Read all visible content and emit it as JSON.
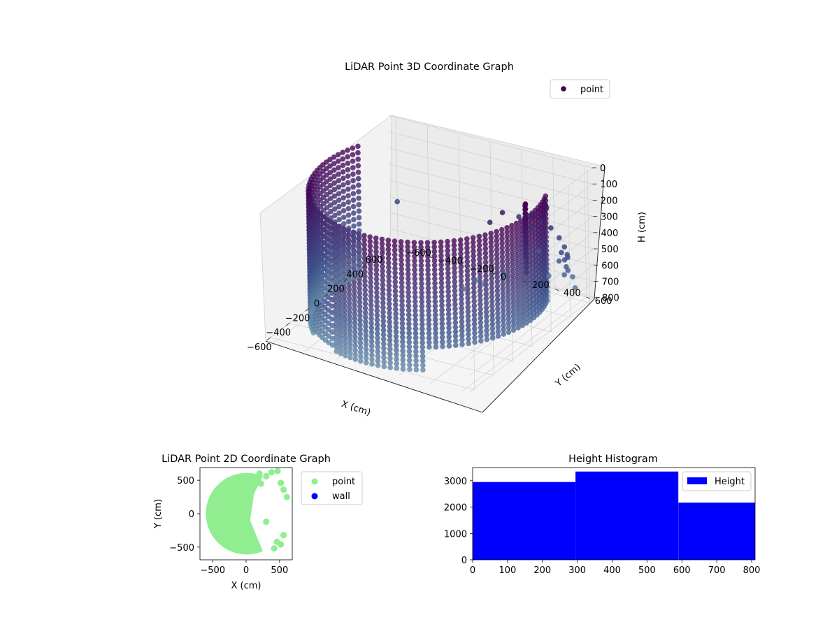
{
  "colors": {
    "point_3d_dark": "#440154",
    "point_3d_mid": "#3b528b",
    "point_2d": "#90ee90",
    "wall": "#0000ff",
    "hist_bar": "#0000ff",
    "pane": "#f2f2f2",
    "grid": "#cfcfcf"
  },
  "chart_data": [
    {
      "type": "scatter",
      "projection": "3d",
      "title": "LiDAR Point 3D Coordinate Graph",
      "xlabel": "X (cm)",
      "ylabel": "Y (cm)",
      "zlabel": "H (cm)",
      "x_ticks": [
        "−600",
        "−400",
        "−200",
        "0",
        "200",
        "400",
        "600"
      ],
      "y_ticks": [
        "−600",
        "−400",
        "−200",
        "0",
        "200",
        "400",
        "600"
      ],
      "z_ticks": [
        "0",
        "100",
        "200",
        "300",
        "400",
        "500",
        "600",
        "700",
        "800"
      ],
      "xlim": [
        -650,
        650
      ],
      "ylim": [
        -650,
        650
      ],
      "zlim": [
        0,
        810
      ],
      "z_inverted": true,
      "grid": true,
      "legend": {
        "position": "upper-right",
        "entries": [
          "point"
        ]
      },
      "series": [
        {
          "name": "point",
          "shape": "cylindrical wall of radius ~650 cm, x ≤ ~250 cm, h 0–810 cm, with column near (100, 550) and sparse points near (550, 500)",
          "sample_points": [
            {
              "x": -650,
              "y": 0,
              "h": 0
            },
            {
              "x": -600,
              "y": 250,
              "h": 400
            },
            {
              "x": -460,
              "y": 460,
              "h": 200
            },
            {
              "x": -200,
              "y": 620,
              "h": 600
            },
            {
              "x": 100,
              "y": 550,
              "h": 100
            },
            {
              "x": 550,
              "y": 500,
              "h": 500
            },
            {
              "x": -460,
              "y": -460,
              "h": 800
            },
            {
              "x": 250,
              "y": -600,
              "h": 700
            },
            {
              "x": 650,
              "y": -600,
              "h": 500
            }
          ]
        }
      ]
    },
    {
      "type": "scatter",
      "title": "LiDAR Point 2D Coordinate Graph",
      "xlabel": "X (cm)",
      "ylabel": "Y (cm)",
      "x_ticks": [
        "−500",
        "0",
        "500"
      ],
      "y_ticks": [
        "−500",
        "0",
        "500"
      ],
      "xlim": [
        -690,
        690
      ],
      "ylim": [
        -690,
        690
      ],
      "legend": {
        "position": "outside-right",
        "entries": [
          "point",
          "wall"
        ]
      },
      "series": [
        {
          "name": "point",
          "shape": "filled disc of radius ~610 cm clipped to x ≤ ~250 cm, with scattered points to the right",
          "sample_points": [
            {
              "x": -610,
              "y": 0
            },
            {
              "x": -300,
              "y": 400
            },
            {
              "x": 0,
              "y": 0
            },
            {
              "x": 250,
              "y": -500
            },
            {
              "x": 500,
              "y": 600
            },
            {
              "x": 450,
              "y": -450
            },
            {
              "x": 550,
              "y": 350
            },
            {
              "x": 250,
              "y": -100
            }
          ]
        },
        {
          "name": "wall",
          "sample_points": []
        }
      ]
    },
    {
      "type": "bar",
      "subtype": "histogram",
      "title": "Height Histogram",
      "xlabel": "",
      "ylabel": "",
      "x_ticks": [
        "0",
        "100",
        "200",
        "300",
        "400",
        "500",
        "600",
        "700",
        "800"
      ],
      "y_ticks": [
        "0",
        "1000",
        "2000",
        "3000"
      ],
      "xlim": [
        0,
        810
      ],
      "ylim": [
        0,
        3500
      ],
      "legend": {
        "position": "upper-right",
        "entries": [
          "Height"
        ]
      },
      "series": [
        {
          "name": "Height",
          "bins": [
            {
              "from": 0,
              "to": 295,
              "count": 2950
            },
            {
              "from": 295,
              "to": 590,
              "count": 3350
            },
            {
              "from": 590,
              "to": 810,
              "count": 2170
            }
          ]
        }
      ]
    }
  ]
}
